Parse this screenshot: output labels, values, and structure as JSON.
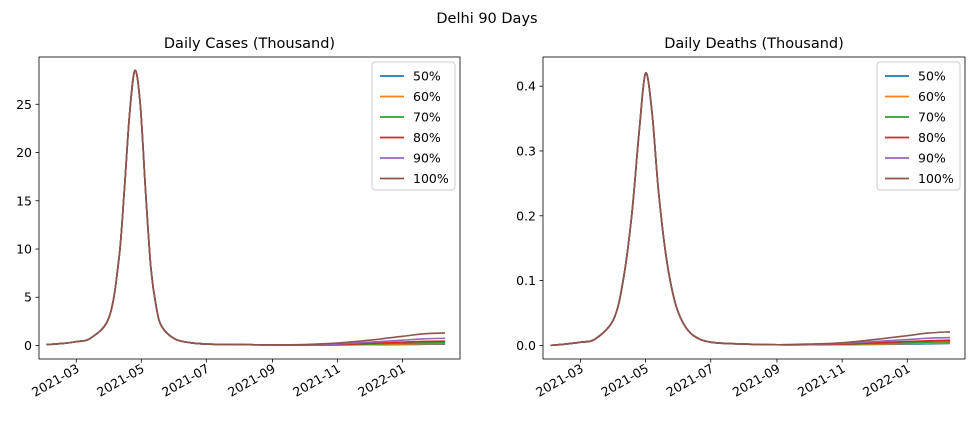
{
  "figure": {
    "suptitle": "Delhi 90 Days"
  },
  "colors": {
    "50%": "#1f77b4",
    "60%": "#ff7f0e",
    "70%": "#2ca02c",
    "80%": "#d62728",
    "90%": "#9467bd",
    "100%": "#8c564b"
  },
  "chart_data": [
    {
      "type": "line",
      "title": "Daily Cases (Thousand)",
      "xlabel": "",
      "ylabel": "",
      "x_tick_labels": [
        "2021-03",
        "2021-05",
        "2021-07",
        "2021-09",
        "2021-11",
        "2022-01"
      ],
      "x_tick_dates": [
        "2021-03-01",
        "2021-05-01",
        "2021-07-01",
        "2021-09-01",
        "2021-11-01",
        "2022-01-01"
      ],
      "xlim": [
        "2021-01-25",
        "2022-02-24"
      ],
      "y_ticks": [
        0,
        5,
        10,
        15,
        20,
        25
      ],
      "ylim": [
        -1.4,
        29.9
      ],
      "grid": false,
      "legend_position": "top-right",
      "x": [
        "2021-02-01",
        "2021-02-15",
        "2021-03-01",
        "2021-03-15",
        "2021-04-01",
        "2021-04-10",
        "2021-04-15",
        "2021-04-20",
        "2021-04-25",
        "2021-04-30",
        "2021-05-05",
        "2021-05-10",
        "2021-05-15",
        "2021-05-20",
        "2021-06-01",
        "2021-06-15",
        "2021-07-01",
        "2021-08-01",
        "2021-09-01",
        "2021-10-01",
        "2021-11-01",
        "2021-12-01",
        "2022-01-01",
        "2022-01-20",
        "2022-02-10"
      ],
      "series": [
        {
          "name": "50%",
          "values": [
            0.1,
            0.2,
            0.4,
            0.8,
            3.0,
            9.0,
            16.0,
            24.0,
            28.5,
            25.0,
            16.0,
            8.0,
            4.0,
            2.0,
            0.7,
            0.3,
            0.15,
            0.1,
            0.05,
            0.05,
            0.05,
            0.08,
            0.1,
            0.12,
            0.14
          ]
        },
        {
          "name": "60%",
          "values": [
            0.1,
            0.2,
            0.4,
            0.8,
            3.0,
            9.0,
            16.0,
            24.0,
            28.5,
            25.0,
            16.0,
            8.0,
            4.0,
            2.0,
            0.7,
            0.3,
            0.15,
            0.1,
            0.05,
            0.05,
            0.06,
            0.1,
            0.15,
            0.18,
            0.2
          ]
        },
        {
          "name": "70%",
          "values": [
            0.1,
            0.2,
            0.4,
            0.8,
            3.0,
            9.0,
            16.0,
            24.0,
            28.5,
            25.0,
            16.0,
            8.0,
            4.0,
            2.0,
            0.7,
            0.3,
            0.15,
            0.1,
            0.05,
            0.05,
            0.08,
            0.15,
            0.22,
            0.28,
            0.3
          ]
        },
        {
          "name": "80%",
          "values": [
            0.1,
            0.2,
            0.4,
            0.8,
            3.0,
            9.0,
            16.0,
            24.0,
            28.5,
            25.0,
            16.0,
            8.0,
            4.0,
            2.0,
            0.7,
            0.3,
            0.15,
            0.1,
            0.05,
            0.06,
            0.1,
            0.22,
            0.35,
            0.42,
            0.45
          ]
        },
        {
          "name": "90%",
          "values": [
            0.1,
            0.2,
            0.4,
            0.8,
            3.0,
            9.0,
            16.0,
            24.0,
            28.5,
            25.0,
            16.0,
            8.0,
            4.0,
            2.0,
            0.7,
            0.3,
            0.15,
            0.1,
            0.05,
            0.07,
            0.15,
            0.35,
            0.55,
            0.68,
            0.75
          ]
        },
        {
          "name": "100%",
          "values": [
            0.1,
            0.2,
            0.4,
            0.8,
            3.0,
            9.0,
            16.0,
            24.0,
            28.5,
            25.0,
            16.0,
            8.0,
            4.0,
            2.0,
            0.7,
            0.3,
            0.15,
            0.1,
            0.06,
            0.1,
            0.25,
            0.55,
            0.95,
            1.2,
            1.3
          ]
        }
      ]
    },
    {
      "type": "line",
      "title": "Daily Deaths (Thousand)",
      "xlabel": "",
      "ylabel": "",
      "x_tick_labels": [
        "2021-03",
        "2021-05",
        "2021-07",
        "2021-09",
        "2021-11",
        "2022-01"
      ],
      "x_tick_dates": [
        "2021-03-01",
        "2021-05-01",
        "2021-07-01",
        "2021-09-01",
        "2021-11-01",
        "2022-01-01"
      ],
      "xlim": [
        "2021-01-25",
        "2022-02-24"
      ],
      "y_ticks": [
        0.0,
        0.1,
        0.2,
        0.3,
        0.4
      ],
      "y_tick_labels": [
        "0.0",
        "0.1",
        "0.2",
        "0.3",
        "0.4"
      ],
      "ylim": [
        -0.021,
        0.445
      ],
      "grid": false,
      "legend_position": "top-right",
      "x": [
        "2021-02-01",
        "2021-02-15",
        "2021-03-01",
        "2021-03-15",
        "2021-04-01",
        "2021-04-10",
        "2021-04-18",
        "2021-04-25",
        "2021-05-01",
        "2021-05-07",
        "2021-05-13",
        "2021-05-20",
        "2021-05-28",
        "2021-06-05",
        "2021-06-15",
        "2021-07-01",
        "2021-08-01",
        "2021-09-01",
        "2021-10-01",
        "2021-11-01",
        "2021-12-01",
        "2022-01-01",
        "2022-01-20",
        "2022-02-10"
      ],
      "series": [
        {
          "name": "50%",
          "values": [
            0.0,
            0.002,
            0.005,
            0.01,
            0.04,
            0.1,
            0.2,
            0.33,
            0.42,
            0.36,
            0.24,
            0.14,
            0.07,
            0.035,
            0.015,
            0.005,
            0.002,
            0.001,
            0.001,
            0.001,
            0.0015,
            0.002,
            0.0025,
            0.003
          ]
        },
        {
          "name": "60%",
          "values": [
            0.0,
            0.002,
            0.005,
            0.01,
            0.04,
            0.1,
            0.2,
            0.33,
            0.42,
            0.36,
            0.24,
            0.14,
            0.07,
            0.035,
            0.015,
            0.005,
            0.002,
            0.001,
            0.001,
            0.0012,
            0.002,
            0.003,
            0.0035,
            0.004
          ]
        },
        {
          "name": "70%",
          "values": [
            0.0,
            0.002,
            0.005,
            0.01,
            0.04,
            0.1,
            0.2,
            0.33,
            0.42,
            0.36,
            0.24,
            0.14,
            0.07,
            0.035,
            0.015,
            0.005,
            0.002,
            0.001,
            0.001,
            0.0015,
            0.003,
            0.004,
            0.005,
            0.0055
          ]
        },
        {
          "name": "80%",
          "values": [
            0.0,
            0.002,
            0.005,
            0.01,
            0.04,
            0.1,
            0.2,
            0.33,
            0.42,
            0.36,
            0.24,
            0.14,
            0.07,
            0.035,
            0.015,
            0.005,
            0.002,
            0.001,
            0.0012,
            0.002,
            0.004,
            0.006,
            0.007,
            0.008
          ]
        },
        {
          "name": "90%",
          "values": [
            0.0,
            0.002,
            0.005,
            0.01,
            0.04,
            0.1,
            0.2,
            0.33,
            0.42,
            0.36,
            0.24,
            0.14,
            0.07,
            0.035,
            0.015,
            0.005,
            0.002,
            0.001,
            0.0015,
            0.003,
            0.006,
            0.009,
            0.011,
            0.012
          ]
        },
        {
          "name": "100%",
          "values": [
            0.0,
            0.002,
            0.005,
            0.01,
            0.04,
            0.1,
            0.2,
            0.33,
            0.42,
            0.36,
            0.24,
            0.14,
            0.07,
            0.035,
            0.015,
            0.005,
            0.002,
            0.001,
            0.002,
            0.004,
            0.009,
            0.015,
            0.019,
            0.021
          ]
        }
      ]
    }
  ]
}
